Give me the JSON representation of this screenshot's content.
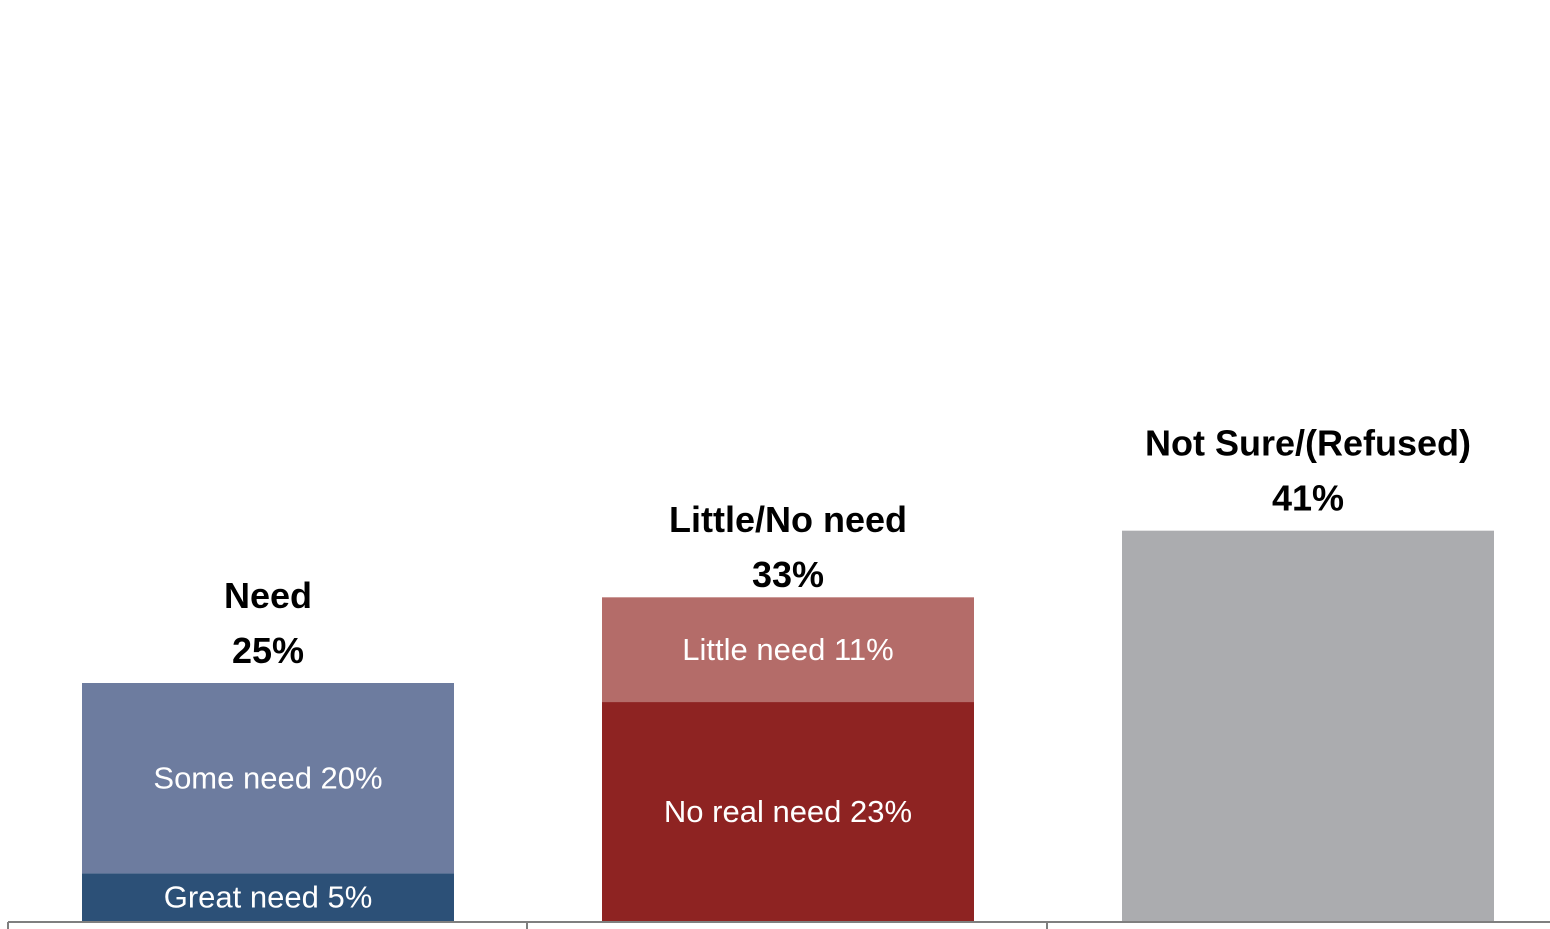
{
  "chart_data": {
    "type": "bar",
    "stacked": true,
    "categories": [
      "Need",
      "Little/No need",
      "Not Sure/(Refused)"
    ],
    "totals": [
      25,
      33,
      41
    ],
    "total_labels": [
      "25%",
      "33%",
      "41%"
    ],
    "segments": [
      [
        {
          "label": "Great need 5%",
          "value": 5,
          "color": "#2c5077",
          "text_color": "#ffffff"
        },
        {
          "label": "Some need 20%",
          "value": 20,
          "color": "#6d7c9f",
          "text_color": "#1a1a1a"
        }
      ],
      [
        {
          "label": "No real need 23%",
          "value": 23,
          "color": "#8e2322",
          "text_color": "#ffffff"
        },
        {
          "label": "Little need 11%",
          "value": 11,
          "color": "#b46c69",
          "text_color": "#1a1a1a"
        }
      ],
      [
        {
          "label": "",
          "value": 41,
          "color": "#abacaf",
          "text_color": "#1a1a1a"
        }
      ]
    ],
    "ylim": [
      0,
      58
    ],
    "axis_color": "#7f7f7f"
  }
}
